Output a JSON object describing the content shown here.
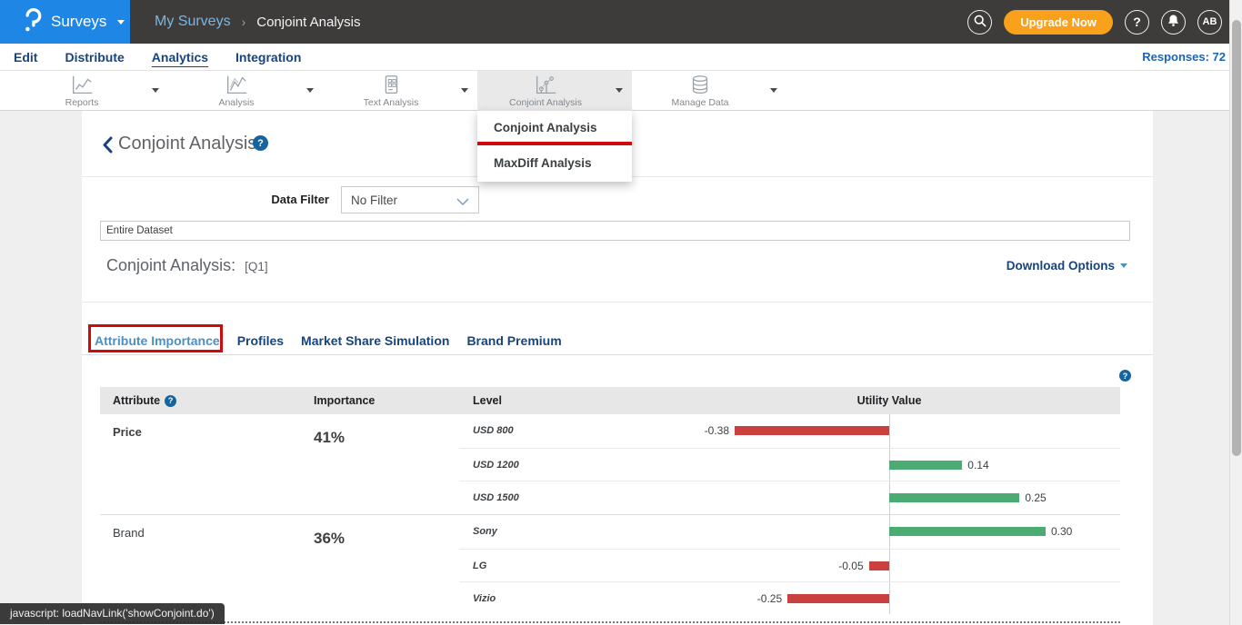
{
  "topbar": {
    "brand_label": "Surveys",
    "breadcrumb_parent": "My Surveys",
    "breadcrumb_sep": "›",
    "breadcrumb_current": "Conjoint Analysis",
    "upgrade_label": "Upgrade Now",
    "help_label": "?",
    "avatar_initials": "AB",
    "brand_color": "#1e87e6",
    "bar_color": "#3e3b3b",
    "upgrade_color": "#f9a11b"
  },
  "subnav": {
    "items": [
      {
        "label": "Edit"
      },
      {
        "label": "Distribute"
      },
      {
        "label": "Analytics"
      },
      {
        "label": "Integration"
      }
    ],
    "active": "Analytics",
    "responses_label": "Responses: 72"
  },
  "toolbar": {
    "items": [
      {
        "label": "Reports",
        "icon": "line-chart-icon"
      },
      {
        "label": "Analysis",
        "icon": "trend-chart-icon"
      },
      {
        "label": "Text Analysis",
        "icon": "document-grid-icon"
      },
      {
        "label": "Conjoint Analysis",
        "icon": "scatter-chart-icon",
        "active": true
      },
      {
        "label": "Manage Data",
        "icon": "database-icon"
      }
    ]
  },
  "dropdown": {
    "items": [
      {
        "label": "Conjoint Analysis",
        "highlighted": true
      },
      {
        "label": "MaxDiff Analysis",
        "highlighted": false
      }
    ],
    "highlight_color": "#cf0a0a"
  },
  "page": {
    "title": "Conjoint Analysis",
    "title_help": "?",
    "data_filter_label": "Data Filter",
    "data_filter_value": "No Filter",
    "dataset_value": "Entire Dataset",
    "section_heading": "Conjoint Analysis:",
    "section_code": "[Q1]",
    "download_label": "Download Options",
    "tabs": [
      {
        "label": "Attribute Importance"
      },
      {
        "label": "Profiles"
      },
      {
        "label": "Market Share Simulation"
      },
      {
        "label": "Brand Premium"
      }
    ],
    "active_tab": "Attribute Importance",
    "help_label": "?"
  },
  "chart_data": {
    "type": "bar",
    "orientation": "horizontal",
    "columns": [
      "Attribute",
      "Importance",
      "Level",
      "Utility Value"
    ],
    "attributes": [
      {
        "name": "Price",
        "importance": "41%",
        "levels": [
          {
            "label": "USD 800",
            "value": -0.38,
            "display": "-0.38"
          },
          {
            "label": "USD 1200",
            "value": 0.14,
            "display": "0.14"
          },
          {
            "label": "USD 1500",
            "value": 0.25,
            "display": "0.25"
          }
        ]
      },
      {
        "name": "Brand",
        "importance": "36%",
        "levels": [
          {
            "label": "Sony",
            "value": 0.3,
            "display": "0.30"
          },
          {
            "label": "LG",
            "value": -0.05,
            "display": "-0.05"
          },
          {
            "label": "Vizio",
            "value": -0.25,
            "display": "-0.25"
          }
        ]
      }
    ],
    "positive_color": "#4cab72",
    "negative_color": "#ca403f",
    "axis_zero_label": ""
  },
  "statusbar": {
    "text": "javascript: loadNavLink('showConjoint.do')"
  }
}
